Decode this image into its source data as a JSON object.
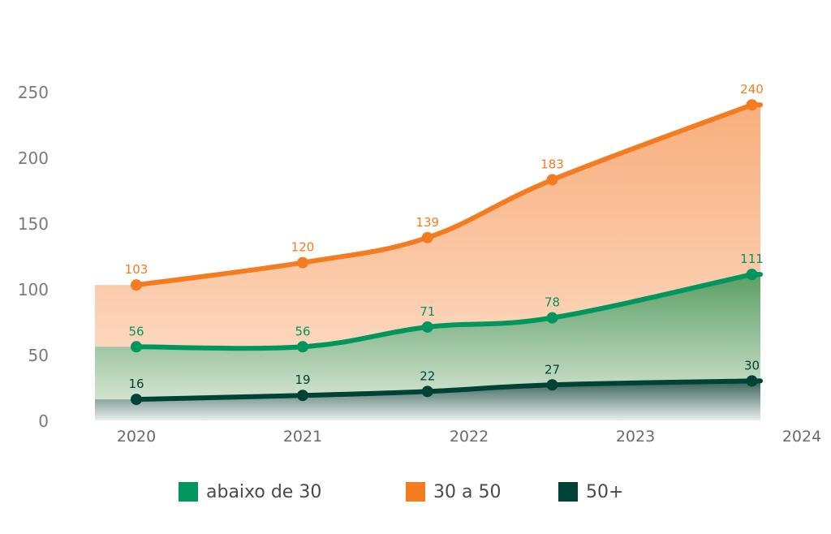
{
  "chart_data": {
    "type": "area",
    "categories": [
      "2020",
      "2021",
      "2022",
      "2023",
      "2024"
    ],
    "ylim": [
      0,
      250
    ],
    "yticks": [
      0,
      50,
      100,
      150,
      200,
      250
    ],
    "grid": false,
    "legend_position": "bottom",
    "series": [
      {
        "name": "abaixo de 30",
        "color": "#00965e",
        "x": [
          0,
          1.0,
          1.75,
          2.5,
          3.7
        ],
        "values": [
          56,
          56,
          71,
          78,
          111
        ],
        "labels": [
          "56",
          "56",
          "71",
          "78",
          "111"
        ]
      },
      {
        "name": "30 a 50",
        "color": "#f47b20",
        "x": [
          0,
          1.0,
          1.75,
          2.5,
          3.7
        ],
        "values": [
          103,
          120,
          139,
          183,
          240
        ],
        "labels": [
          "103",
          "120",
          "139",
          "183",
          "240"
        ]
      },
      {
        "name": "50+",
        "color": "#004236",
        "x": [
          0,
          1.0,
          1.75,
          2.5,
          3.7
        ],
        "values": [
          16,
          19,
          22,
          27,
          30
        ],
        "labels": [
          "16",
          "19",
          "22",
          "27",
          "30"
        ]
      }
    ]
  }
}
